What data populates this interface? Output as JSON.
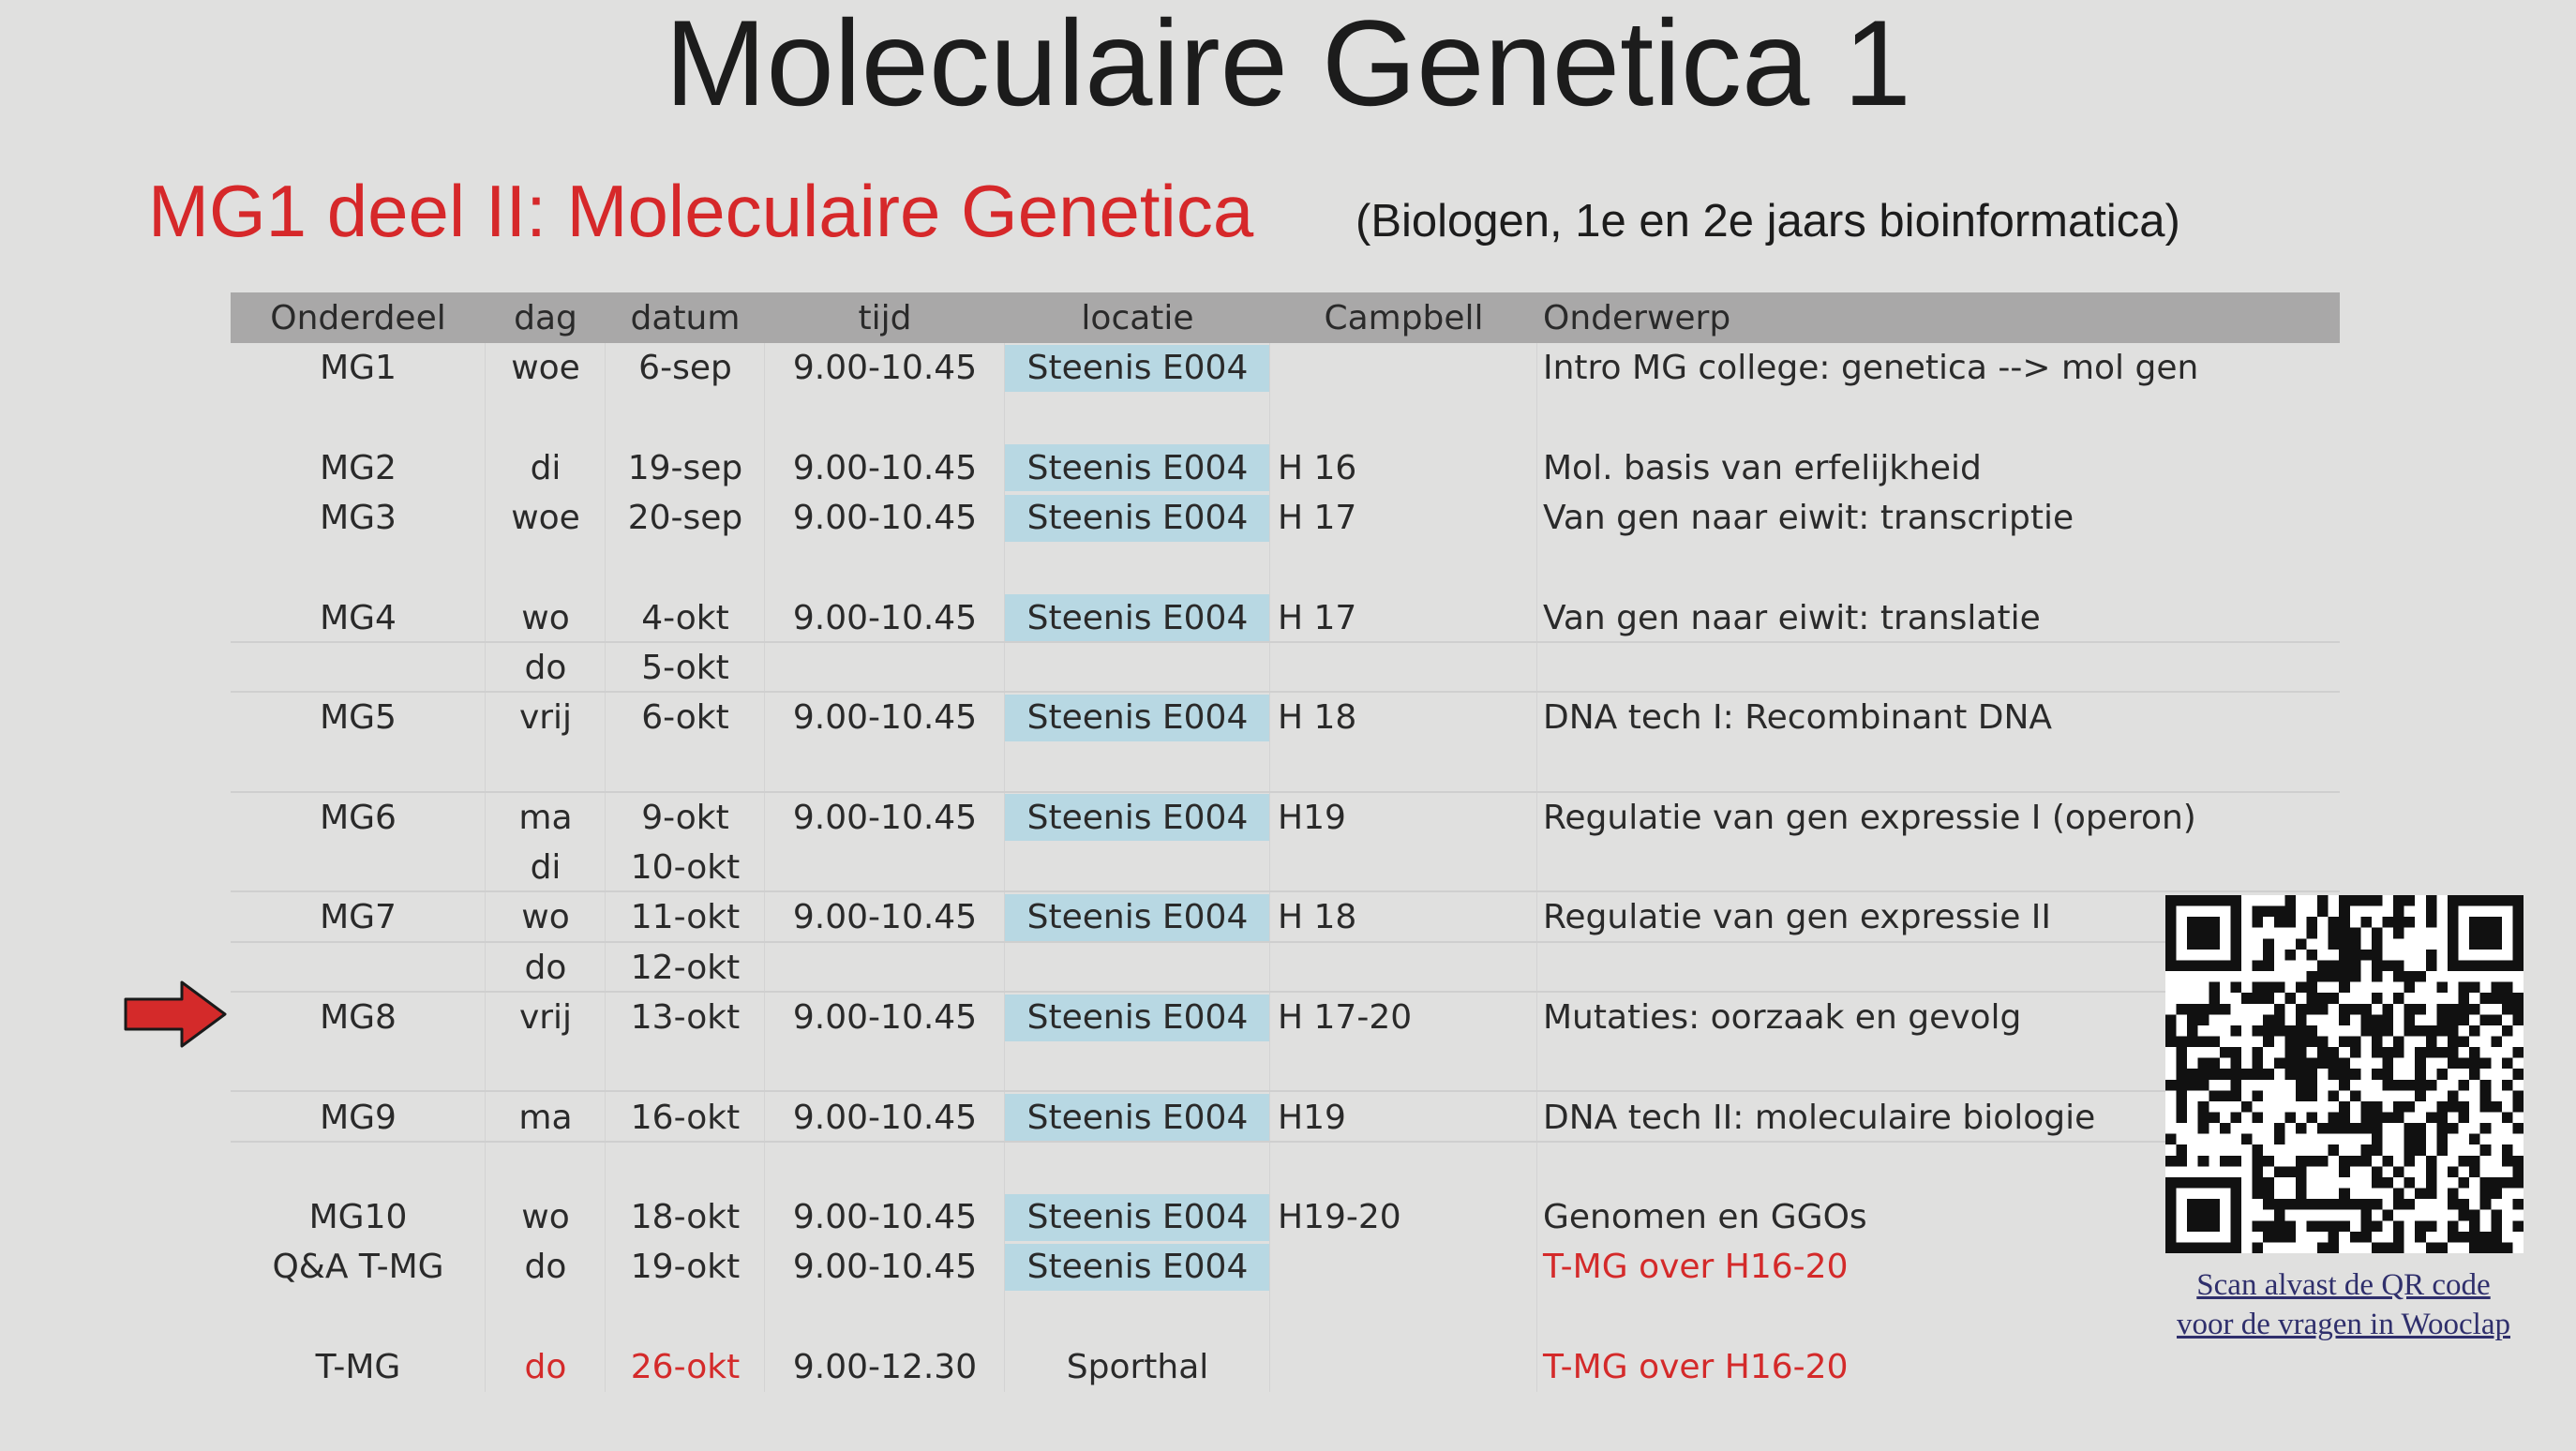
{
  "slide": {
    "title": "Moleculaire Genetica 1",
    "subtitle": "MG1 deel II: Moleculaire Genetica",
    "audience": "(Biologen, 1e en 2e jaars bioinformatica)"
  },
  "table": {
    "headers": [
      "Onderdeel",
      "dag",
      "datum",
      "tijd",
      "locatie",
      "Campbell",
      "Onderwerp"
    ],
    "rows": [
      {
        "onderdeel": "MG1",
        "dag": "woe",
        "datum": "6-sep",
        "tijd": "9.00-10.45",
        "locatie": "Steenis E004",
        "campbell": "",
        "onderwerp": "Intro MG college: genetica --> mol gen"
      },
      {
        "onderdeel": "",
        "dag": "",
        "datum": "",
        "tijd": "",
        "locatie": "",
        "campbell": "",
        "onderwerp": ""
      },
      {
        "onderdeel": "MG2",
        "dag": "di",
        "datum": "19-sep",
        "tijd": "9.00-10.45",
        "locatie": "Steenis E004",
        "campbell": "H 16",
        "onderwerp": "Mol. basis van erfelijkheid"
      },
      {
        "onderdeel": "MG3",
        "dag": "woe",
        "datum": "20-sep",
        "tijd": "9.00-10.45",
        "locatie": "Steenis E004",
        "campbell": "H 17",
        "onderwerp": "Van gen naar eiwit: transcriptie"
      },
      {
        "onderdeel": "",
        "dag": "",
        "datum": "",
        "tijd": "",
        "locatie": "",
        "campbell": "",
        "onderwerp": ""
      },
      {
        "onderdeel": "MG4",
        "dag": "wo",
        "datum": "4-okt",
        "tijd": "9.00-10.45",
        "locatie": "Steenis E004",
        "campbell": "H 17",
        "onderwerp": "Van gen naar eiwit: translatie"
      },
      {
        "onderdeel": "",
        "dag": "do",
        "datum": "5-okt",
        "tijd": "",
        "locatie": "",
        "campbell": "",
        "onderwerp": ""
      },
      {
        "onderdeel": "MG5",
        "dag": "vrij",
        "datum": "6-okt",
        "tijd": "9.00-10.45",
        "locatie": "Steenis E004",
        "campbell": "H 18",
        "onderwerp": "DNA tech I: Recombinant DNA"
      },
      {
        "onderdeel": "",
        "dag": "",
        "datum": "",
        "tijd": "",
        "locatie": "",
        "campbell": "",
        "onderwerp": ""
      },
      {
        "onderdeel": "MG6",
        "dag": "ma",
        "datum": "9-okt",
        "tijd": "9.00-10.45",
        "locatie": "Steenis E004",
        "campbell": "H19",
        "onderwerp": "Regulatie van gen expressie I (operon)"
      },
      {
        "onderdeel": "",
        "dag": "di",
        "datum": "10-okt",
        "tijd": "",
        "locatie": "",
        "campbell": "",
        "onderwerp": ""
      },
      {
        "onderdeel": "MG7",
        "dag": "wo",
        "datum": "11-okt",
        "tijd": "9.00-10.45",
        "locatie": "Steenis E004",
        "campbell": "H 18",
        "onderwerp": "Regulatie van gen expressie II"
      },
      {
        "onderdeel": "",
        "dag": "do",
        "datum": "12-okt",
        "tijd": "",
        "locatie": "",
        "campbell": "",
        "onderwerp": ""
      },
      {
        "onderdeel": "MG8",
        "dag": "vrij",
        "datum": "13-okt",
        "tijd": "9.00-10.45",
        "locatie": "Steenis E004",
        "campbell": "H 17-20",
        "onderwerp": "Mutaties: oorzaak en gevolg"
      },
      {
        "onderdeel": "",
        "dag": "",
        "datum": "",
        "tijd": "",
        "locatie": "",
        "campbell": "",
        "onderwerp": ""
      },
      {
        "onderdeel": "MG9",
        "dag": "ma",
        "datum": "16-okt",
        "tijd": "9.00-10.45",
        "locatie": "Steenis E004",
        "campbell": "H19",
        "onderwerp": "DNA tech II: moleculaire biologie"
      },
      {
        "onderdeel": "",
        "dag": "",
        "datum": "",
        "tijd": "",
        "locatie": "",
        "campbell": "",
        "onderwerp": ""
      },
      {
        "onderdeel": "MG10",
        "dag": "wo",
        "datum": "18-okt",
        "tijd": "9.00-10.45",
        "locatie": "Steenis E004",
        "campbell": "H19-20",
        "onderwerp": "Genomen en GGOs"
      },
      {
        "onderdeel": "Q&A T-MG",
        "dag": "do",
        "datum": "19-okt",
        "tijd": "9.00-10.45",
        "locatie": "Steenis E004",
        "campbell": "",
        "onderwerp": "T-MG over H16-20",
        "onderwerp_color": "red"
      },
      {
        "onderdeel": "",
        "dag": "",
        "datum": "",
        "tijd": "",
        "locatie": "",
        "campbell": "",
        "onderwerp": ""
      },
      {
        "onderdeel": "T-MG",
        "dag": "do",
        "datum": "26-okt",
        "tijd": "9.00-12.30",
        "locatie": "Sporthal",
        "campbell": "",
        "onderwerp": "T-MG over H16-20",
        "dag_color": "red",
        "datum_color": "red",
        "onderwerp_color": "red",
        "locatie_plain": true
      }
    ]
  },
  "qr": {
    "caption_line1": "Scan alvast de QR code",
    "caption_line2": "voor de vragen in Wooclap"
  },
  "colors": {
    "accent_red": "#d6282a",
    "location_highlight": "#b8d8e3",
    "header_gray": "#a9a8a8",
    "background": "#e0e0df"
  },
  "icons": {
    "pointer": "red-arrow-icon"
  }
}
